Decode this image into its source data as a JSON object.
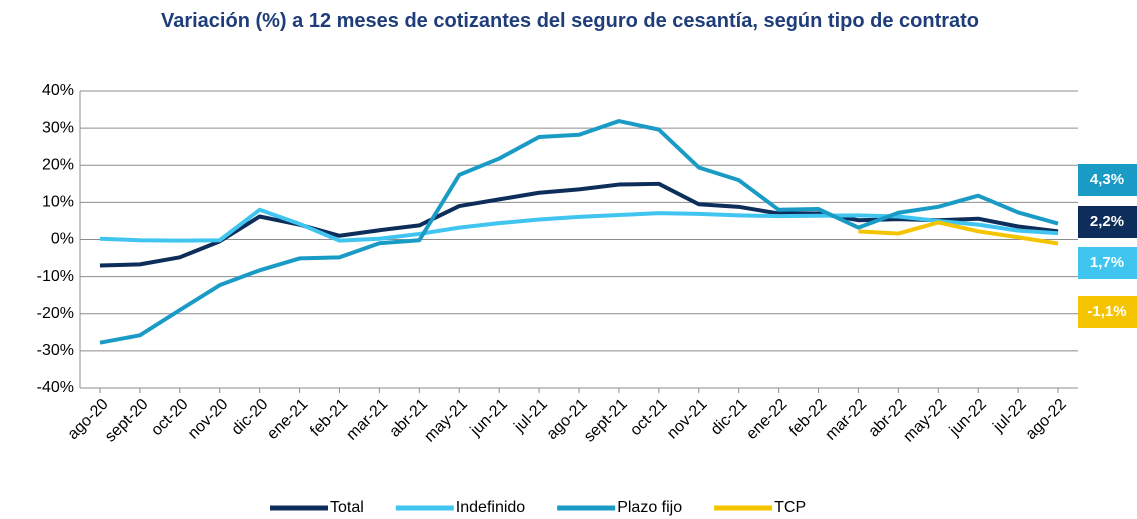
{
  "chart_data": {
    "type": "line",
    "title": "Variación (%) a 12 meses de cotizantes del seguro de cesantía, según tipo de contrato",
    "categories": [
      "ago-20",
      "sept-20",
      "oct-20",
      "nov-20",
      "dic-20",
      "ene-21",
      "feb-21",
      "mar-21",
      "abr-21",
      "may-21",
      "jun-21",
      "jul-21",
      "ago-21",
      "sept-21",
      "oct-21",
      "nov-21",
      "dic-21",
      "ene-22",
      "feb-22",
      "mar-22",
      "abr-22",
      "may-22",
      "jun-22",
      "jul-22",
      "ago-22"
    ],
    "series": [
      {
        "name": "Total",
        "color": "#0d2d5a",
        "values": [
          -7,
          -6.7,
          -4.8,
          -0.5,
          6.2,
          4,
          1,
          2.5,
          3.8,
          9,
          10.8,
          12.6,
          13.5,
          14.8,
          15,
          9.5,
          8.8,
          7,
          7,
          5.2,
          5.5,
          5.2,
          5.6,
          3.5,
          2.2
        ],
        "value_labels": [
          null,
          null,
          null,
          null,
          null,
          null,
          null,
          null,
          null,
          null,
          null,
          null,
          null,
          null,
          null,
          null,
          null,
          null,
          null,
          null,
          null,
          null,
          null,
          null,
          "2,2%"
        ]
      },
      {
        "name": "Indefinido",
        "color": "#3fc5f0",
        "values": [
          0.2,
          -0.2,
          -0.3,
          -0.2,
          8,
          4.2,
          -0.3,
          0.2,
          1.5,
          3.2,
          4.4,
          5.4,
          6.1,
          6.6,
          7.1,
          6.9,
          6.5,
          6.3,
          6.4,
          6.5,
          6.2,
          5,
          4,
          2.4,
          1.7
        ],
        "value_labels": [
          null,
          null,
          null,
          null,
          null,
          null,
          null,
          null,
          null,
          null,
          null,
          null,
          null,
          null,
          null,
          null,
          null,
          null,
          null,
          null,
          null,
          null,
          null,
          null,
          "1,7%"
        ]
      },
      {
        "name": "Plazo fijo",
        "color": "#1a9bc6",
        "values": [
          -27.8,
          -25.8,
          -19,
          -12.3,
          -8.3,
          -5.1,
          -4.8,
          -1,
          -0.2,
          17.4,
          21.8,
          27.6,
          28.2,
          31.9,
          29.6,
          19.4,
          16,
          8,
          8.2,
          3.2,
          7.2,
          8.8,
          11.8,
          7.3,
          4.3
        ],
        "value_labels": [
          null,
          null,
          null,
          null,
          null,
          null,
          null,
          null,
          null,
          null,
          null,
          null,
          null,
          null,
          null,
          null,
          null,
          null,
          null,
          null,
          null,
          null,
          null,
          null,
          "4,3%"
        ]
      },
      {
        "name": "TCP",
        "color": "#f5c400",
        "values": [
          null,
          null,
          null,
          null,
          null,
          null,
          null,
          null,
          null,
          null,
          null,
          null,
          null,
          null,
          null,
          null,
          null,
          null,
          null,
          2.2,
          1.6,
          4.6,
          2.2,
          0.6,
          -1.1
        ],
        "value_labels": [
          null,
          null,
          null,
          null,
          null,
          null,
          null,
          null,
          null,
          null,
          null,
          null,
          null,
          null,
          null,
          null,
          null,
          null,
          null,
          null,
          null,
          null,
          null,
          null,
          "-1,1%"
        ]
      }
    ],
    "ylim": [
      -40,
      40
    ],
    "yticks": [
      {
        "value": -40,
        "label": "-40%"
      },
      {
        "value": -30,
        "label": "-30%"
      },
      {
        "value": -20,
        "label": "-20%"
      },
      {
        "value": -10,
        "label": "-10%"
      },
      {
        "value": 0,
        "label": "0%"
      },
      {
        "value": 10,
        "label": "10%"
      },
      {
        "value": 20,
        "label": "20%"
      },
      {
        "value": 30,
        "label": "30%"
      },
      {
        "value": 40,
        "label": "40%"
      }
    ],
    "grid": true,
    "legend": "bottom"
  }
}
